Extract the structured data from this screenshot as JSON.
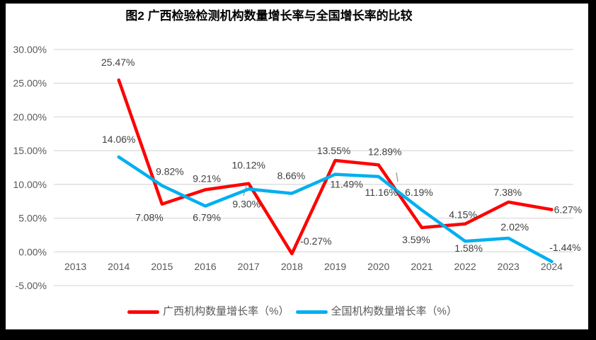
{
  "title": "图2 广西检验检测机构数量增长率与全国增长率的比较",
  "chart_data": {
    "type": "line",
    "title": "图2 广西检验检测机构数量增长率与全国增长率的比较",
    "categories": [
      "2013",
      "2014",
      "2015",
      "2016",
      "2017",
      "2018",
      "2019",
      "2020",
      "2021",
      "2022",
      "2023",
      "2024"
    ],
    "series": [
      {
        "name": "广西机构数量增长率（%）",
        "color": "#FF0000",
        "values": [
          null,
          25.47,
          7.08,
          9.21,
          10.12,
          -0.27,
          13.55,
          12.89,
          3.59,
          4.15,
          7.38,
          6.27
        ],
        "labels": [
          null,
          "25.47%",
          "7.08%",
          "9.21%",
          "10.12%",
          "-0.27%",
          "13.55%",
          "12.89%",
          "3.59%",
          "4.15%",
          "7.38%",
          "6.27%"
        ],
        "label_offsets": [
          null,
          [
            -1,
            -25
          ],
          [
            -18,
            19
          ],
          [
            2,
            -16
          ],
          [
            0,
            -26
          ],
          [
            34,
            -18
          ],
          [
            -2,
            -14
          ],
          [
            9,
            -19
          ],
          [
            -8,
            17
          ],
          [
            -3,
            -13
          ],
          [
            -1,
            -14
          ],
          [
            23,
            0
          ]
        ]
      },
      {
        "name": "全国机构数量增长率（%）",
        "color": "#00B0F0",
        "values": [
          null,
          14.06,
          9.82,
          6.79,
          9.3,
          8.66,
          11.49,
          11.16,
          6.19,
          1.58,
          2.02,
          -1.44
        ],
        "labels": [
          null,
          "14.06%",
          "9.82%",
          "6.79%",
          "9.30%",
          "8.66%",
          "11.49%",
          "11.16%",
          "6.19%",
          "1.58%",
          "2.02%",
          "-1.44%"
        ],
        "label_offsets": [
          null,
          [
            0,
            -25
          ],
          [
            11,
            -20
          ],
          [
            2,
            16
          ],
          [
            -3,
            21
          ],
          [
            -1,
            -25
          ],
          [
            16,
            14
          ],
          [
            4,
            22
          ],
          [
            -4,
            -25
          ],
          [
            5,
            10
          ],
          [
            9,
            -16
          ],
          [
            19,
            -20
          ]
        ]
      }
    ],
    "y_axis": {
      "tick_labels": [
        "30.00%",
        "25.00%",
        "20.00%",
        "15.00%",
        "10.00%",
        "5.00%",
        "0.00%",
        "-5.00%"
      ],
      "tick_values": [
        30,
        25,
        20,
        15,
        10,
        5,
        0,
        -5
      ],
      "min": -5,
      "max": 30
    },
    "xlabel": "",
    "ylabel": "",
    "grid": true,
    "legend_position": "bottom",
    "leader_lines": [
      [
        348,
        263,
        344,
        277
      ],
      [
        560,
        244,
        562,
        257
      ]
    ],
    "colors": {
      "gridline": "#D9D9D9",
      "axis_text": "#595959",
      "label_text": "#404040",
      "leader": "#999999",
      "frame_border": "#000000"
    }
  },
  "legend": {
    "items": [
      {
        "label": "广西机构数量增长率（%）",
        "color": "#FF0000"
      },
      {
        "label": "全国机构数量增长率（%）",
        "color": "#00B0F0"
      }
    ]
  }
}
